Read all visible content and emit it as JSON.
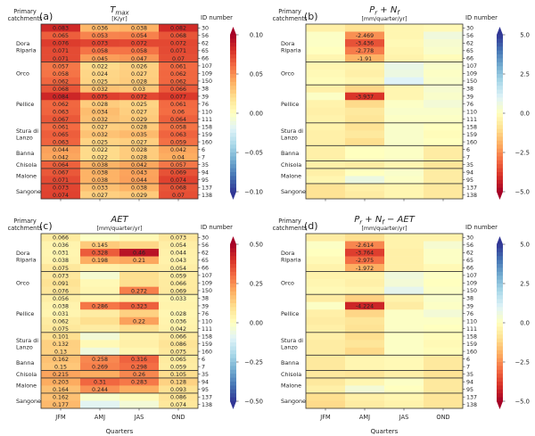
{
  "figure": {
    "xlabel": "Quarters",
    "ylabel_left": "Primary catchments",
    "ylabel_right": "ID number"
  },
  "chart_data": [
    {
      "type": "heatmap",
      "panel": "(a)",
      "title": "T_max",
      "title_display": "Tmax",
      "title_sub": "max",
      "units": "[K/yr]",
      "xlabel": "Quarters",
      "categories": [
        "JFM",
        "AMJ",
        "JAS",
        "OND"
      ],
      "row_ids": [
        "30",
        "56",
        "62",
        "65",
        "66",
        "107",
        "109",
        "150",
        "38",
        "39",
        "76",
        "110",
        "111",
        "158",
        "159",
        "160",
        "6",
        "7",
        "35",
        "94",
        "95",
        "137",
        "138"
      ],
      "groups": [
        {
          "name": "",
          "rows": 1
        },
        {
          "name": "Dora\nRiparia",
          "rows": 4
        },
        {
          "name": "Orco",
          "rows": 3
        },
        {
          "name": "Pellice",
          "rows": 5
        },
        {
          "name": "Stura di\nLanzo",
          "rows": 3
        },
        {
          "name": "Banna",
          "rows": 2
        },
        {
          "name": "Chisola",
          "rows": 1
        },
        {
          "name": "Malone",
          "rows": 2
        },
        {
          "name": "Sangone",
          "rows": 2
        }
      ],
      "values": [
        [
          0.083,
          0.036,
          0.038,
          0.082
        ],
        [
          0.065,
          0.053,
          0.054,
          0.068
        ],
        [
          0.076,
          0.073,
          0.072,
          0.072
        ],
        [
          0.071,
          0.058,
          0.058,
          0.071
        ],
        [
          0.071,
          0.045,
          0.047,
          0.07
        ],
        [
          0.057,
          0.022,
          0.026,
          0.061
        ],
        [
          0.058,
          0.024,
          0.027,
          0.062
        ],
        [
          0.062,
          0.025,
          0.028,
          0.062
        ],
        [
          0.068,
          0.032,
          0.03,
          0.066
        ],
        [
          0.084,
          0.075,
          0.072,
          0.077
        ],
        [
          0.062,
          0.028,
          0.025,
          0.061
        ],
        [
          0.063,
          0.034,
          0.027,
          0.06
        ],
        [
          0.067,
          0.032,
          0.029,
          0.064
        ],
        [
          0.061,
          0.027,
          0.028,
          0.058
        ],
        [
          0.065,
          0.032,
          0.035,
          0.063
        ],
        [
          0.063,
          0.025,
          0.027,
          0.059
        ],
        [
          0.044,
          0.022,
          0.028,
          0.042
        ],
        [
          0.042,
          0.022,
          0.028,
          0.04
        ],
        [
          0.064,
          0.038,
          0.042,
          0.057
        ],
        [
          0.067,
          0.038,
          0.043,
          0.069
        ],
        [
          0.071,
          0.038,
          0.044,
          0.074
        ],
        [
          0.073,
          0.033,
          0.038,
          0.068
        ],
        [
          0.074,
          0.027,
          0.029,
          0.07
        ]
      ],
      "show_labels": "all",
      "colorbar": {
        "min": -0.1,
        "max": 0.1,
        "ticks": [
          0.1,
          0.05,
          0.0,
          -0.05,
          -0.1
        ],
        "tick_labels": [
          "0.10",
          "0.05",
          "0.00",
          "−0.05",
          "−0.10"
        ],
        "cmap": "RdYlBu_r"
      }
    },
    {
      "type": "heatmap",
      "panel": "(b)",
      "title": "P_r + N_f",
      "units": "[mm/quarter/yr]",
      "categories": [
        "JFM",
        "AMJ",
        "JAS",
        "OND"
      ],
      "values": [
        [
          -0.5,
          -0.9,
          -0.3,
          -0.2
        ],
        [
          0.1,
          -2.469,
          -0.3,
          0.5
        ],
        [
          0.1,
          -3.436,
          -0.2,
          0.3
        ],
        [
          0.0,
          -2.778,
          -0.3,
          0.2
        ],
        [
          -0.3,
          -1.91,
          -0.4,
          -0.1
        ],
        [
          -0.3,
          -0.4,
          0.7,
          0.2
        ],
        [
          -0.2,
          -0.5,
          0.6,
          0.1
        ],
        [
          -0.1,
          -0.3,
          1.0,
          0.2
        ],
        [
          -0.5,
          -1.2,
          -0.3,
          0.3
        ],
        [
          0.1,
          -3.937,
          -0.3,
          0.2
        ],
        [
          -0.4,
          -1.1,
          0.1,
          0.4
        ],
        [
          -0.5,
          -0.7,
          0.2,
          0.2
        ],
        [
          -0.4,
          -0.8,
          0.1,
          0.1
        ],
        [
          -0.4,
          -0.9,
          0.2,
          0.0
        ],
        [
          -0.5,
          -0.7,
          0.2,
          -0.1
        ],
        [
          -0.5,
          -1.0,
          0.2,
          0.0
        ],
        [
          -0.5,
          0.0,
          0.1,
          -0.6
        ],
        [
          -0.5,
          0.0,
          0.1,
          -0.6
        ],
        [
          -0.5,
          -0.6,
          -0.3,
          -0.8
        ],
        [
          -0.5,
          0.0,
          0.2,
          -0.6
        ],
        [
          -0.3,
          0.6,
          0.1,
          -0.6
        ],
        [
          -0.9,
          -0.5,
          -0.3,
          -0.7
        ],
        [
          -0.9,
          -0.6,
          -0.3,
          -0.7
        ]
      ],
      "labels": {
        "1,1": "-2.469",
        "2,1": "-3.436",
        "3,1": "-2.778",
        "4,1": "-1.91",
        "9,1": "-3.937"
      },
      "colorbar": {
        "min": -5.0,
        "max": 5.0,
        "ticks": [
          5.0,
          2.5,
          0.0,
          -2.5,
          -5.0
        ],
        "tick_labels": [
          "5.0",
          "2.5",
          "0.0",
          "−2.5",
          "−5.0"
        ],
        "cmap": "RdYlBu"
      }
    },
    {
      "type": "heatmap",
      "panel": "(c)",
      "title": "AET",
      "units": "[mm/quarter/yr]",
      "categories": [
        "JFM",
        "AMJ",
        "JAS",
        "OND"
      ],
      "values": [
        [
          0.066,
          -0.01,
          0.02,
          0.073
        ],
        [
          0.036,
          0.145,
          0.12,
          0.054
        ],
        [
          0.031,
          0.328,
          0.46,
          0.044
        ],
        [
          0.038,
          0.198,
          0.21,
          0.043
        ],
        [
          0.075,
          0.05,
          0.06,
          0.054
        ],
        [
          0.073,
          -0.03,
          0.1,
          0.059
        ],
        [
          0.091,
          0.02,
          0.1,
          0.066
        ],
        [
          0.076,
          0.03,
          0.272,
          0.069
        ],
        [
          0.056,
          0.03,
          0.06,
          0.033
        ],
        [
          0.038,
          0.286,
          0.323,
          0.04
        ],
        [
          0.031,
          0.06,
          0.13,
          0.028
        ],
        [
          0.062,
          0.1,
          0.22,
          0.036
        ],
        [
          0.075,
          0.06,
          0.1,
          0.042
        ],
        [
          0.101,
          -0.04,
          0.04,
          0.066
        ],
        [
          0.132,
          0.02,
          0.05,
          0.086
        ],
        [
          0.13,
          -0.05,
          0.03,
          0.075
        ],
        [
          0.162,
          0.258,
          0.316,
          0.065
        ],
        [
          0.15,
          0.269,
          0.298,
          0.059
        ],
        [
          0.215,
          0.2,
          0.26,
          0.105
        ],
        [
          0.203,
          0.31,
          0.283,
          0.128
        ],
        [
          0.164,
          0.244,
          0.2,
          0.093
        ],
        [
          0.162,
          -0.02,
          0.02,
          0.086
        ],
        [
          0.177,
          -0.09,
          -0.04,
          0.074
        ]
      ],
      "labels": {
        "0,0": "0.066",
        "0,3": "0.073",
        "1,0": "0.036",
        "1,1": "0.145",
        "1,3": "0.054",
        "2,0": "0.031",
        "2,1": "0.328",
        "2,2": "0.46",
        "2,3": "0.044",
        "3,0": "0.038",
        "3,1": "0.198",
        "3,2": "0.21",
        "3,3": "0.043",
        "4,0": "0.075",
        "4,3": "0.054",
        "5,0": "0.073",
        "5,3": "0.059",
        "6,0": "0.091",
        "6,3": "0.066",
        "7,0": "0.076",
        "7,2": "0.272",
        "7,3": "0.069",
        "8,0": "0.056",
        "8,3": "0.033",
        "9,0": "0.038",
        "9,1": "0.286",
        "9,2": "0.323",
        "10,0": "0.031",
        "10,3": "0.028",
        "11,0": "0.062",
        "11,2": "0.22",
        "11,3": "0.036",
        "12,0": "0.075",
        "12,3": "0.042",
        "13,0": "0.101",
        "13,3": "0.066",
        "14,0": "0.132",
        "14,3": "0.086",
        "15,0": "0.13",
        "15,3": "0.075",
        "16,0": "0.162",
        "16,1": "0.258",
        "16,2": "0.316",
        "16,3": "0.065",
        "17,0": "0.15",
        "17,1": "0.269",
        "17,2": "0.298",
        "17,3": "0.059",
        "18,0": "0.215",
        "18,2": "0.26",
        "18,3": "0.105",
        "19,0": "0.203",
        "19,1": "0.31",
        "19,2": "0.283",
        "19,3": "0.128",
        "20,0": "0.164",
        "20,1": "0.244",
        "20,3": "0.093",
        "21,0": "0.162",
        "21,3": "0.086",
        "22,0": "0.177",
        "22,3": "0.074"
      },
      "colorbar": {
        "min": -0.5,
        "max": 0.5,
        "ticks": [
          0.5,
          0.25,
          0.0,
          -0.25,
          -0.5
        ],
        "tick_labels": [
          "0.50",
          "0.25",
          "0.00",
          "−0.25",
          "−0.50"
        ],
        "cmap": "RdYlBu_r"
      }
    },
    {
      "type": "heatmap",
      "panel": "(d)",
      "title": "P_r + N_f − AET",
      "units": "[mm/quarter/yr]",
      "categories": [
        "JFM",
        "AMJ",
        "JAS",
        "OND"
      ],
      "values": [
        [
          -0.6,
          -1.0,
          -0.4,
          -0.4
        ],
        [
          0.1,
          -2.614,
          -0.4,
          0.3
        ],
        [
          0.0,
          -3.764,
          -0.5,
          0.1
        ],
        [
          -0.2,
          -2.975,
          -0.5,
          0.1
        ],
        [
          -0.4,
          -1.972,
          -0.5,
          -0.2
        ],
        [
          -0.4,
          -0.4,
          0.5,
          0.1
        ],
        [
          -0.3,
          -0.5,
          0.4,
          0.0
        ],
        [
          -0.2,
          -0.3,
          0.8,
          0.1
        ],
        [
          -0.6,
          -1.3,
          -0.4,
          0.2
        ],
        [
          0.1,
          -4.224,
          -0.6,
          0.1
        ],
        [
          -0.5,
          -1.2,
          0.1,
          0.4
        ],
        [
          -0.6,
          -0.8,
          0.1,
          0.1
        ],
        [
          -0.5,
          -0.9,
          0.1,
          0.0
        ],
        [
          -0.5,
          -1.0,
          0.1,
          -0.1
        ],
        [
          -0.6,
          -0.8,
          0.1,
          -0.2
        ],
        [
          -0.6,
          -1.1,
          0.1,
          -0.1
        ],
        [
          -0.7,
          -0.3,
          -0.2,
          -0.7
        ],
        [
          -0.7,
          -0.3,
          -0.2,
          -0.7
        ],
        [
          -0.7,
          -0.8,
          -0.5,
          -0.9
        ],
        [
          -0.7,
          -0.3,
          0.1,
          -0.7
        ],
        [
          -0.5,
          0.4,
          0.0,
          -0.7
        ],
        [
          -1.0,
          -0.5,
          -0.3,
          -0.8
        ],
        [
          -1.1,
          -0.6,
          -0.4,
          -0.8
        ]
      ],
      "labels": {
        "1,1": "-2.614",
        "2,1": "-3.764",
        "3,1": "-2.975",
        "4,1": "-1.972",
        "9,1": "-4.224"
      },
      "colorbar": {
        "min": -5.0,
        "max": 5.0,
        "ticks": [
          5.0,
          2.5,
          0.0,
          -2.5,
          -5.0
        ],
        "tick_labels": [
          "5.0",
          "2.5",
          "0.0",
          "−2.5",
          "−5.0"
        ],
        "cmap": "RdYlBu"
      }
    }
  ]
}
